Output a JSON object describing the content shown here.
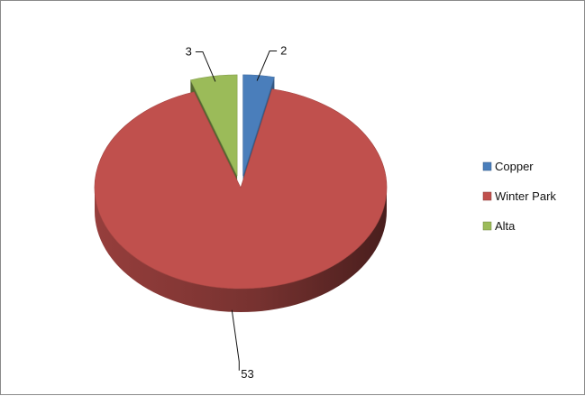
{
  "chart_data": {
    "type": "pie",
    "style": "3d-exploded",
    "categories": [
      "Copper",
      "Winter Park",
      "Alta"
    ],
    "values": [
      2,
      53,
      3
    ],
    "data_labels": [
      "2",
      "53",
      "3"
    ],
    "colors": [
      "#4a7ebb",
      "#c0504d",
      "#9bbb59"
    ],
    "legend_position": "right",
    "title": ""
  }
}
